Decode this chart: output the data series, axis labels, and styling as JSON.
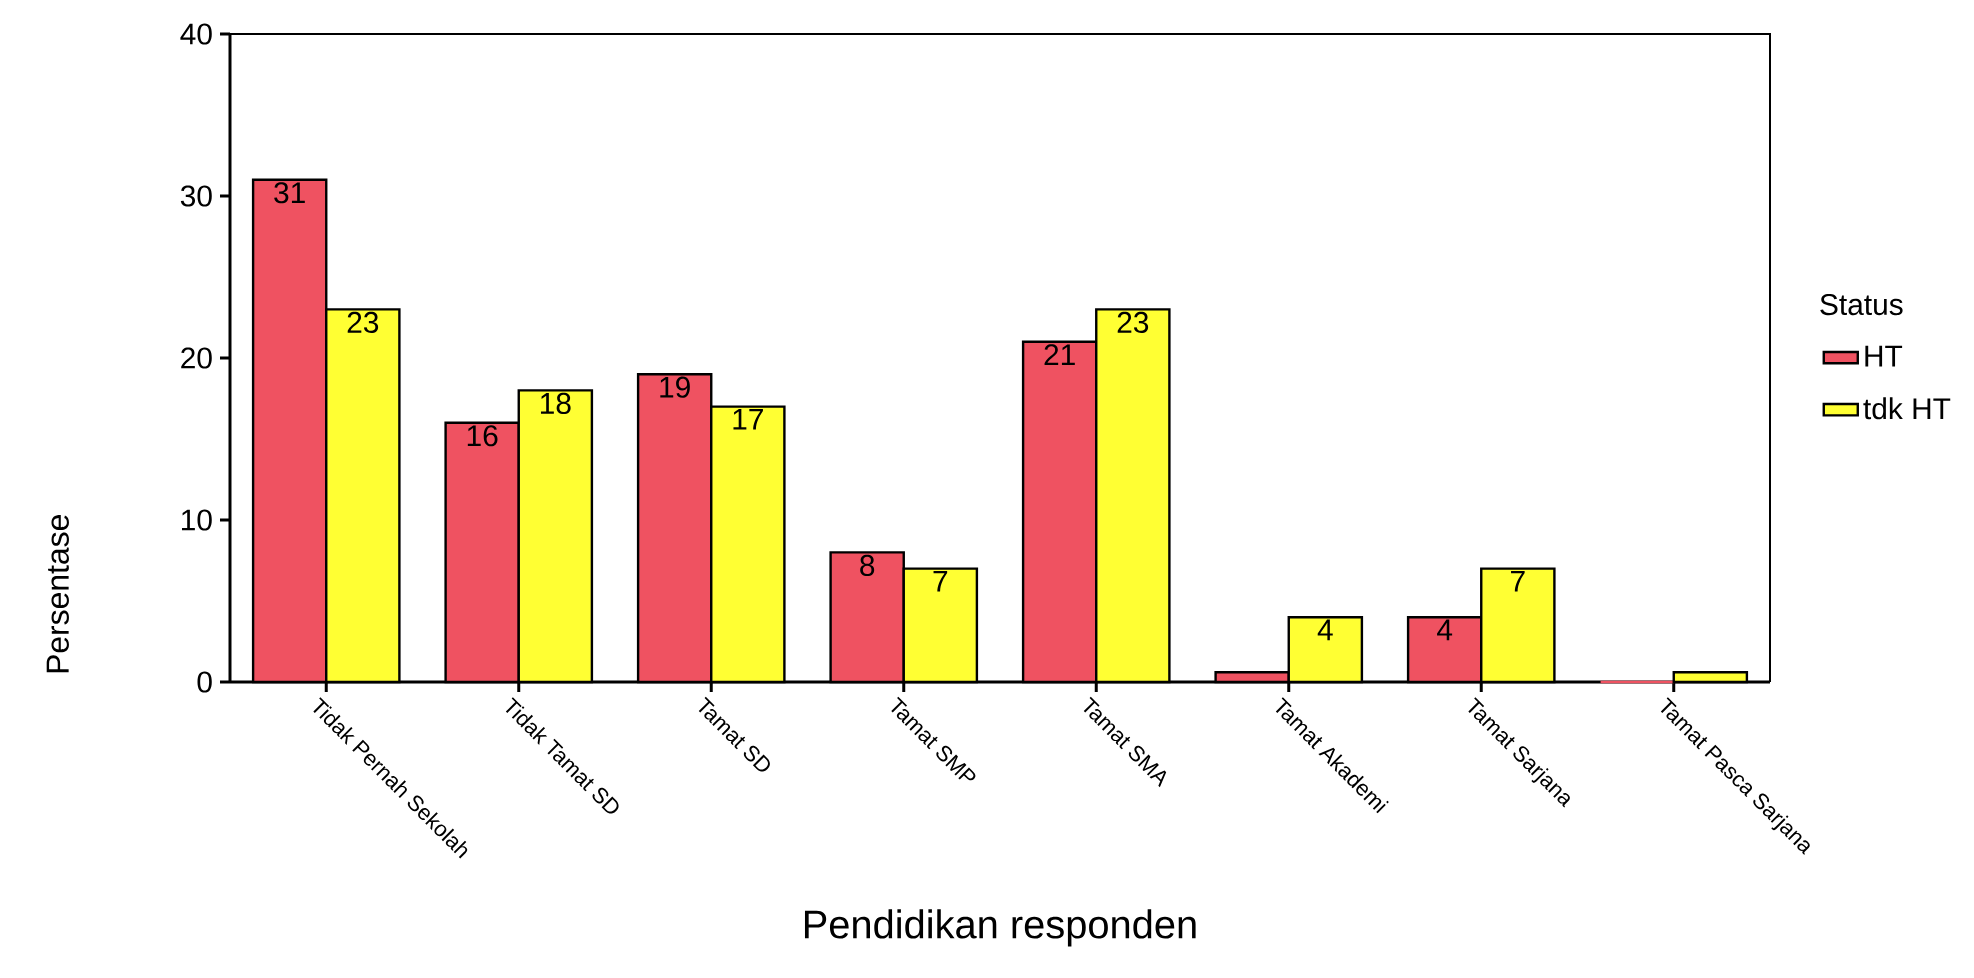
{
  "chart_data": {
    "type": "bar",
    "xlabel": "Pendidikan responden",
    "ylabel": "Persentase",
    "legend_title": "Status",
    "categories": [
      "Tidak Pernah Sekolah",
      "Tidak Tamat SD",
      "Tamat SD",
      "Tamat SMP",
      "Tamat SMA",
      "Tamat Akademi",
      "Tamat Sarjana",
      "Tamat Pasca Sarjana"
    ],
    "series": [
      {
        "name": "HT",
        "color": "#ef5261",
        "values": [
          31,
          16,
          19,
          8,
          21,
          0.6,
          4,
          0
        ],
        "value_labels": [
          "31",
          "16",
          "19",
          "8",
          "21",
          null,
          "4",
          null
        ]
      },
      {
        "name": "tdk HT",
        "color": "#ffff33",
        "values": [
          23,
          18,
          17,
          7,
          23,
          4,
          7,
          0.6
        ],
        "value_labels": [
          "23",
          "18",
          "17",
          "7",
          "23",
          "4",
          "7",
          null
        ]
      }
    ],
    "ylim": [
      0,
      40
    ],
    "yticks": [
      0,
      10,
      20,
      30,
      40
    ],
    "grid": false,
    "legend": "right"
  }
}
